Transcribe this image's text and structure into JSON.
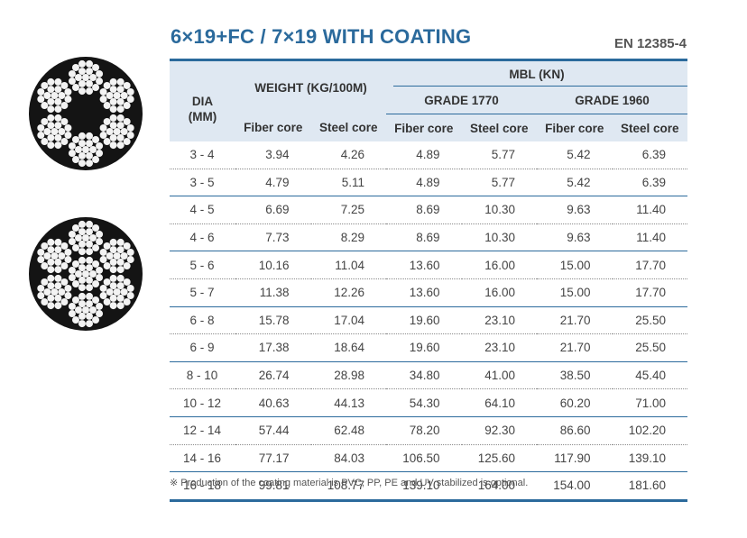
{
  "title": "6×19+FC / 7×19 WITH COATING",
  "standard": "EN 12385-4",
  "table": {
    "dia_header": "DIA\n(MM)",
    "weight_header": "WEIGHT (KG/100M)",
    "mbl_header": "MBL (KN)",
    "grade_1770": "GRADE 1770",
    "grade_1960": "GRADE 1960",
    "sub_headers": [
      "Fiber core",
      "Steel core",
      "Fiber core",
      "Steel core",
      "Fiber core",
      "Steel core"
    ],
    "rows": [
      [
        "3 - 4",
        "3.94",
        "4.26",
        "4.89",
        "5.77",
        "5.42",
        "6.39"
      ],
      [
        "3 - 5",
        "4.79",
        "5.11",
        "4.89",
        "5.77",
        "5.42",
        "6.39"
      ],
      [
        "4 - 5",
        "6.69",
        "7.25",
        "8.69",
        "10.30",
        "9.63",
        "11.40"
      ],
      [
        "4 - 6",
        "7.73",
        "8.29",
        "8.69",
        "10.30",
        "9.63",
        "11.40"
      ],
      [
        "5 - 6",
        "10.16",
        "11.04",
        "13.60",
        "16.00",
        "15.00",
        "17.70"
      ],
      [
        "5 - 7",
        "11.38",
        "12.26",
        "13.60",
        "16.00",
        "15.00",
        "17.70"
      ],
      [
        "6 - 8",
        "15.78",
        "17.04",
        "19.60",
        "23.10",
        "21.70",
        "25.50"
      ],
      [
        "6 - 9",
        "17.38",
        "18.64",
        "19.60",
        "23.10",
        "21.70",
        "25.50"
      ],
      [
        "8 - 10",
        "26.74",
        "28.98",
        "34.80",
        "41.00",
        "38.50",
        "45.40"
      ],
      [
        "10 - 12",
        "40.63",
        "44.13",
        "54.30",
        "64.10",
        "60.20",
        "71.00"
      ],
      [
        "12 - 14",
        "57.44",
        "62.48",
        "78.20",
        "92.30",
        "86.60",
        "102.20"
      ],
      [
        "14 - 16",
        "77.17",
        "84.03",
        "106.50",
        "125.60",
        "117.90",
        "139.10"
      ],
      [
        "16 - 18",
        "99.81",
        "108.77",
        "139.10",
        "164.00",
        "154.00",
        "181.60"
      ]
    ]
  },
  "footnote": "※ Production of the coating material is PVC, PP, PE and UV stabilized is optional.",
  "colors": {
    "accent": "#2b6a9c",
    "header_bg": "#dfe8f2",
    "rope_bg": "#141414",
    "wire": "#f3f3f3"
  },
  "icons": [
    "rope-6x19-fc-icon",
    "rope-7x19-icon"
  ]
}
